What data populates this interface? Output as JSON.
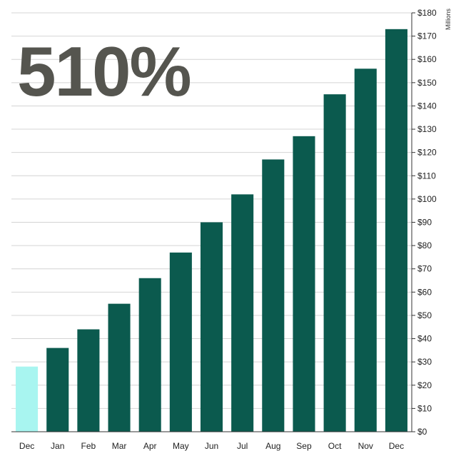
{
  "headline": "510%",
  "colors": {
    "bar": "#0b5a4e",
    "highlight": "#a8f5f0",
    "grid": "#d4d4d4",
    "axis": "#333333",
    "headline": "#55554f"
  },
  "chart_data": {
    "type": "bar",
    "categories": [
      "Dec",
      "Jan",
      "Feb",
      "Mar",
      "Apr",
      "May",
      "Jun",
      "Jul",
      "Aug",
      "Sep",
      "Oct",
      "Nov",
      "Dec"
    ],
    "values": [
      28,
      36,
      44,
      55,
      66,
      77,
      90,
      102,
      117,
      127,
      145,
      156,
      173
    ],
    "highlight_index": 0,
    "y_unit": "Millions",
    "ylim": [
      0,
      180
    ],
    "y_ticks": [
      "$0",
      "$10",
      "$20",
      "$30",
      "$40",
      "$50",
      "$60",
      "$70",
      "$80",
      "$90",
      "$100",
      "$110",
      "$120",
      "$130",
      "$140",
      "$150",
      "$160",
      "$170",
      "$180"
    ],
    "y_axis_side": "right",
    "grid": true,
    "legend": "none"
  }
}
